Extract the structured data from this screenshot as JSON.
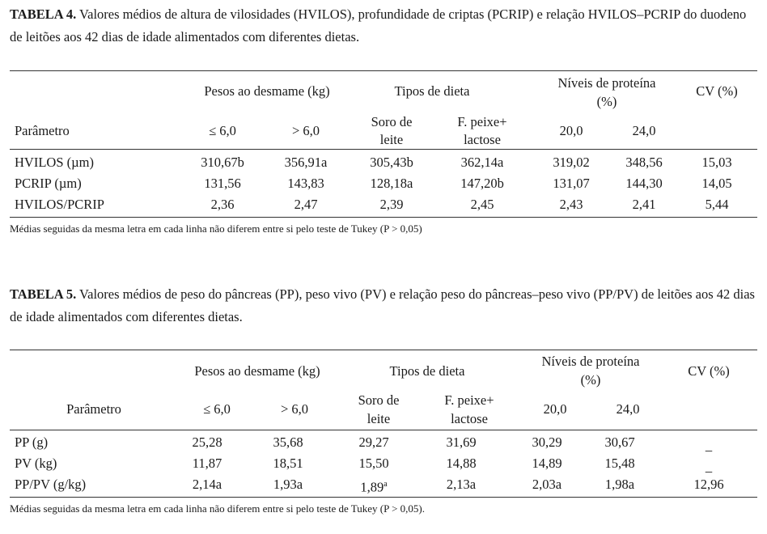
{
  "table4": {
    "caption_label": "TABELA 4.",
    "caption_text": " Valores médios de altura de vilosidades (HVILOS), profundidade de criptas (PCRIP) e relação HVILOS–PCRIP do duodeno de leitões aos 42 dias de idade alimentados com diferentes dietas.",
    "group_headers": [
      "Pesos ao desmame (kg)",
      "Tipos de dieta",
      "Níveis de proteína",
      "(%)",
      "CV (%)"
    ],
    "param_label": "Parâmetro",
    "sub_headers": [
      "≤ 6,0",
      "> 6,0",
      "Soro de",
      "leite",
      "F. peixe+",
      "lactose",
      "20,0",
      "24,0"
    ],
    "rows": [
      {
        "param": "HVILOS (µm)",
        "values": [
          "310,67b",
          "356,91a",
          "305,43b",
          "362,14a",
          "319,02",
          "348,56",
          "15,03"
        ]
      },
      {
        "param": "PCRIP (µm)",
        "values": [
          "131,56",
          "143,83",
          "128,18a",
          "147,20b",
          "131,07",
          "144,30",
          "14,05"
        ]
      },
      {
        "param": "HVILOS/PCRIP",
        "values": [
          "2,36",
          "2,47",
          "2,39",
          "2,45",
          "2,43",
          "2,41",
          "5,44"
        ]
      }
    ],
    "note": "Médias seguidas da  mesma  letra em cada linha não diferem entre si pelo teste de Tukey (P > 0,05)"
  },
  "table5": {
    "caption_label": "TABELA 5.",
    "caption_text": " Valores médios de peso do pâncreas (PP), peso vivo (PV) e relação peso do pâncreas–peso vivo (PP/PV) de leitões aos 42 dias de idade alimentados com diferentes dietas.",
    "group_headers": [
      "Pesos ao desmame (kg)",
      "Tipos de dieta",
      "Níveis de proteína",
      "(%)",
      "CV (%)"
    ],
    "param_label": "Parâmetro",
    "sub_headers": [
      "≤ 6,0",
      "> 6,0",
      "Soro de",
      "leite",
      "F. peixe+",
      "lactose",
      "20,0",
      "24,0"
    ],
    "rows": [
      {
        "param": "PP (g)",
        "values": [
          "25,28",
          "35,68",
          "29,27",
          "31,69",
          "30,29",
          "30,67",
          "_"
        ]
      },
      {
        "param": "PV (kg)",
        "values": [
          "11,87",
          "18,51",
          "15,50",
          "14,88",
          "14,89",
          "15,48",
          "_"
        ]
      },
      {
        "param": "PP/PV (g/kg)",
        "values": [
          "2,14a",
          "1,93a",
          "1,89",
          "2,13a",
          "2,03a",
          "1,98a",
          "12,96"
        ]
      }
    ],
    "superscript": "a",
    "note": "Médias seguidas da mesma letra em cada linha não diferem entre si pelo teste de Tukey (P > 0,05)."
  }
}
